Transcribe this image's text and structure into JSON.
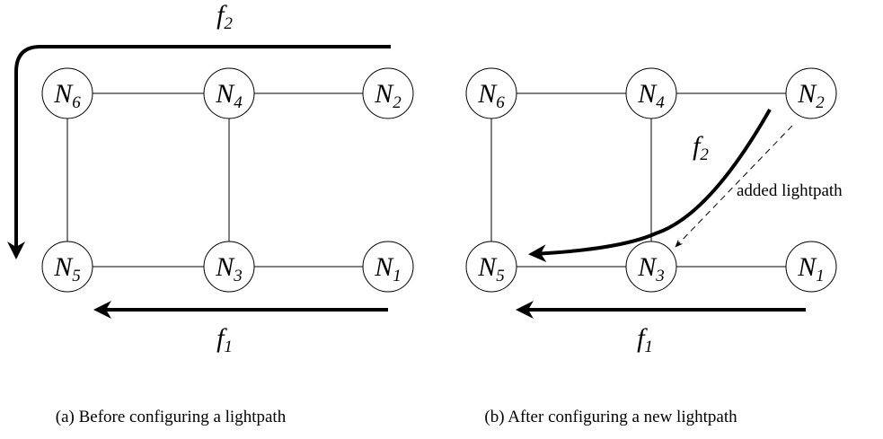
{
  "panels": [
    {
      "caption": "(a) Before configuring a lightpath",
      "nodes": [
        {
          "letter": "N",
          "index": "6"
        },
        {
          "letter": "N",
          "index": "4"
        },
        {
          "letter": "N",
          "index": "2"
        },
        {
          "letter": "N",
          "index": "5"
        },
        {
          "letter": "N",
          "index": "3"
        },
        {
          "letter": "N",
          "index": "1"
        }
      ],
      "flows": [
        {
          "letter": "f",
          "index": "2"
        },
        {
          "letter": "f",
          "index": "1"
        }
      ]
    },
    {
      "caption": "(b) After configuring a new lightpath",
      "nodes": [
        {
          "letter": "N",
          "index": "6"
        },
        {
          "letter": "N",
          "index": "4"
        },
        {
          "letter": "N",
          "index": "2"
        },
        {
          "letter": "N",
          "index": "5"
        },
        {
          "letter": "N",
          "index": "3"
        },
        {
          "letter": "N",
          "index": "1"
        }
      ],
      "flows": [
        {
          "letter": "f",
          "index": "2"
        },
        {
          "letter": "f",
          "index": "1"
        }
      ],
      "annotation": "added lightpath"
    }
  ]
}
